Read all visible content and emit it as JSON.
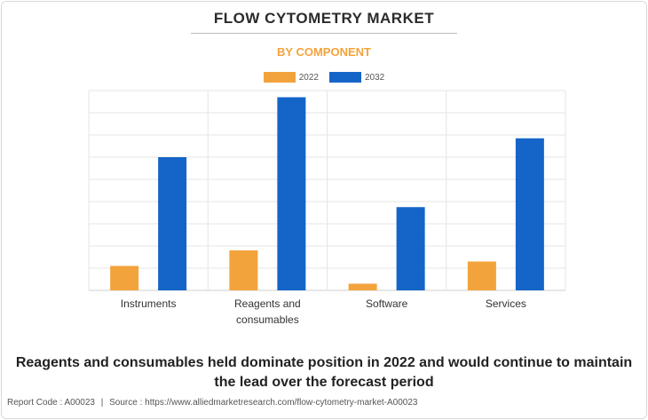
{
  "header": {
    "title": "FLOW CYTOMETRY MARKET",
    "subtitle": "BY COMPONENT"
  },
  "legend": [
    {
      "label": "2022",
      "color": "#f3a33b"
    },
    {
      "label": "2032",
      "color": "#1565c8"
    }
  ],
  "chart_data": {
    "type": "bar",
    "subtitle": "BY COMPONENT",
    "categories": [
      "Instruments",
      "Reagents and consumables",
      "Software",
      "Services"
    ],
    "category_lines": [
      [
        "Instruments"
      ],
      [
        "Reagents and",
        "consumables"
      ],
      [
        "Software"
      ],
      [
        "Services"
      ]
    ],
    "series": [
      {
        "name": "2022",
        "color": "#f3a33b",
        "values": [
          1.1,
          1.8,
          0.3,
          1.3
        ]
      },
      {
        "name": "2032",
        "color": "#1565c8",
        "values": [
          6.0,
          8.7,
          3.75,
          6.85
        ]
      }
    ],
    "ylim": [
      0,
      9
    ],
    "grid": true,
    "legend_position": "top-center",
    "y_axis_labels_shown": false
  },
  "headline": "Reagents and consumables held dominate position in 2022 and would continue to maintain the lead over the forecast period",
  "footer": {
    "report_code": "Report Code : A00023",
    "separator": "|",
    "source": "Source : https://www.alliedmarketresearch.com/flow-cytometry-market-A00023"
  }
}
